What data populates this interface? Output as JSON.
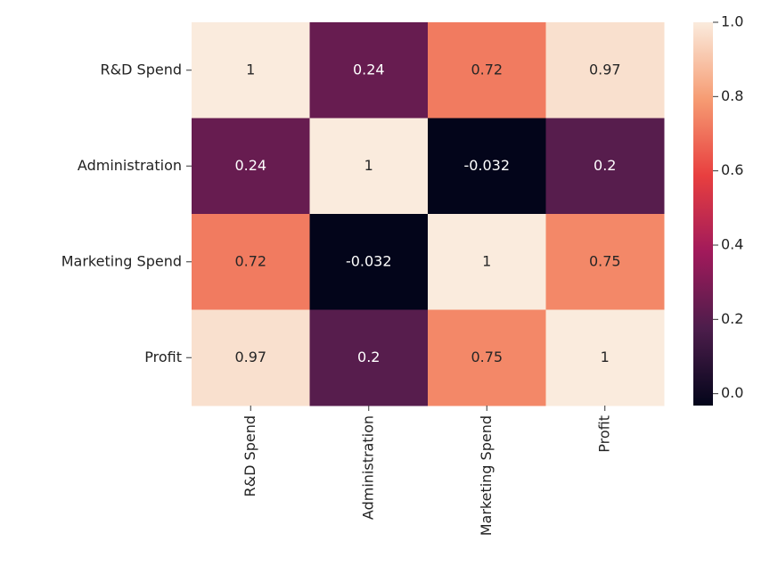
{
  "chart_data": {
    "type": "heatmap",
    "x_categories": [
      "R&D Spend",
      "Administration",
      "Marketing Spend",
      "Profit"
    ],
    "y_categories": [
      "R&D Spend",
      "Administration",
      "Marketing Spend",
      "Profit"
    ],
    "values": [
      [
        1,
        0.24,
        0.72,
        0.97
      ],
      [
        0.24,
        1,
        -0.032,
        0.2
      ],
      [
        0.72,
        -0.032,
        1,
        0.75
      ],
      [
        0.97,
        0.2,
        0.75,
        1
      ]
    ],
    "colormap": [
      "#03051a",
      "#4c1d4b",
      "#a11a5b",
      "#e83f3f",
      "#f69c73",
      "#faebdd"
    ],
    "clim": [
      -0.032,
      1
    ],
    "cticks": [
      {
        "value": 0,
        "label": "0.0"
      },
      0.2,
      0.4,
      0.6,
      0.8,
      {
        "value": 1,
        "label": "1.0"
      }
    ]
  }
}
